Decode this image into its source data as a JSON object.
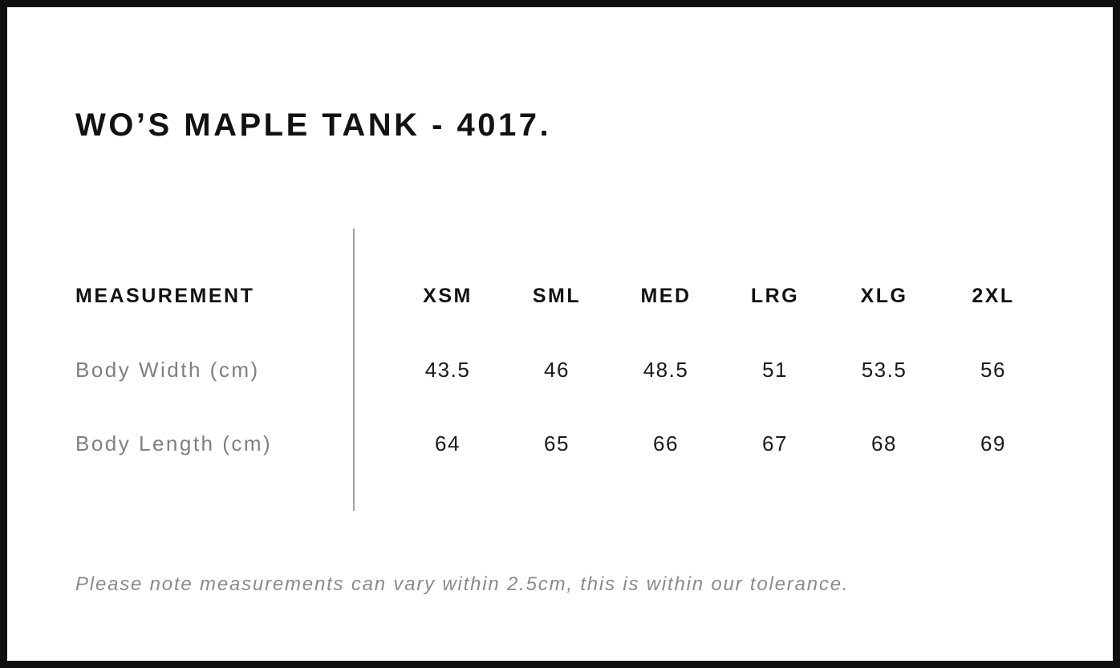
{
  "title": "WO’S MAPLE TANK - 4017.",
  "table": {
    "measurement_header": "MEASUREMENT",
    "sizes": [
      "XSM",
      "SML",
      "MED",
      "LRG",
      "XLG",
      "2XL"
    ],
    "rows": [
      {
        "label": "Body Width (cm)",
        "values": [
          "43.5",
          "46",
          "48.5",
          "51",
          "53.5",
          "56"
        ]
      },
      {
        "label": "Body Length (cm)",
        "values": [
          "64",
          "65",
          "66",
          "67",
          "68",
          "69"
        ]
      }
    ]
  },
  "note": "Please note measurements can vary within 2.5cm, this is within our tolerance.",
  "colors": {
    "background": "#ffffff",
    "border_black": "#0f0f0f",
    "heading_black": "#121212",
    "value_black": "#1a1a1a",
    "label_gray": "#7f7f7f",
    "note_gray": "#8a8a8a",
    "divider_gray": "#a2a2a2"
  },
  "chart_data": {
    "type": "table",
    "title": "WO’S MAPLE TANK - 4017.",
    "columns": [
      "MEASUREMENT",
      "XSM",
      "SML",
      "MED",
      "LRG",
      "XLG",
      "2XL"
    ],
    "rows": [
      [
        "Body Width (cm)",
        43.5,
        46,
        48.5,
        51,
        53.5,
        56
      ],
      [
        "Body Length (cm)",
        64,
        65,
        66,
        67,
        68,
        69
      ]
    ],
    "units": "cm",
    "footnote": "Please note measurements can vary within 2.5cm, this is within our tolerance."
  }
}
